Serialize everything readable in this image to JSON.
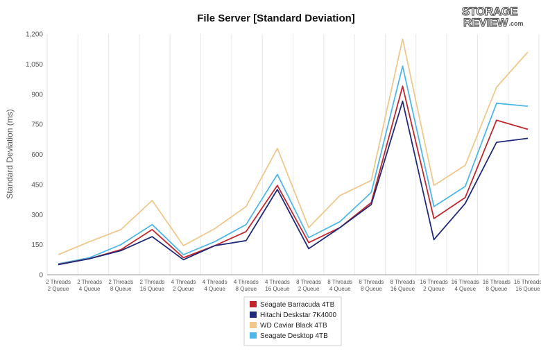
{
  "logo": {
    "line1": "STORAGE",
    "line2": "REVIEW",
    "suffix": ".com"
  },
  "chart_data": {
    "type": "line",
    "title": "File Server [Standard Deviation]",
    "xlabel": "",
    "ylabel": "Standard Deviation (ms)",
    "ylim": [
      0,
      1200
    ],
    "yticks": [
      "0",
      "150",
      "300",
      "450",
      "600",
      "750",
      "900",
      "1,050",
      "1,200"
    ],
    "grid": "vertical",
    "legend_position": "bottom",
    "categories": [
      [
        "2 Threads",
        "2 Queue"
      ],
      [
        "2 Threads",
        "4 Queue"
      ],
      [
        "2 Threads",
        "8 Queue"
      ],
      [
        "2 Threads",
        "16 Queue"
      ],
      [
        "4 Threads",
        "2 Queue"
      ],
      [
        "4 Threads",
        "4 Queue"
      ],
      [
        "4 Threads",
        "8 Queue"
      ],
      [
        "4 Threads",
        "16 Queue"
      ],
      [
        "8 Threads",
        "2 Queue"
      ],
      [
        "8 Threads",
        "4 Queue"
      ],
      [
        "8 Threads",
        "8 Queue"
      ],
      [
        "8 Threads",
        "16 Queue"
      ],
      [
        "16 Threads",
        "2 Queue"
      ],
      [
        "16 Threads",
        "4 Queue"
      ],
      [
        "16 Threads",
        "8 Queue"
      ],
      [
        "16 Threads",
        "16 Queue"
      ]
    ],
    "series": [
      {
        "name": "Seagate Barracuda 4TB",
        "color": "#c0272d",
        "values": [
          52,
          80,
          125,
          225,
          85,
          145,
          215,
          445,
          160,
          235,
          360,
          940,
          280,
          385,
          770,
          725
        ]
      },
      {
        "name": "Hitachi Deskstar 7K4000",
        "color": "#1f2a7a",
        "values": [
          50,
          80,
          120,
          190,
          75,
          145,
          170,
          425,
          130,
          235,
          350,
          865,
          175,
          355,
          660,
          680
        ]
      },
      {
        "name": "WD Caviar Black 4TB",
        "color": "#f0c78c",
        "values": [
          100,
          165,
          225,
          370,
          145,
          230,
          340,
          630,
          235,
          395,
          470,
          1175,
          445,
          545,
          935,
          1110
        ]
      },
      {
        "name": "Seagate Desktop 4TB",
        "color": "#4fb7e8",
        "values": [
          55,
          85,
          150,
          250,
          100,
          165,
          250,
          500,
          185,
          265,
          410,
          1040,
          340,
          440,
          855,
          840
        ]
      }
    ]
  }
}
